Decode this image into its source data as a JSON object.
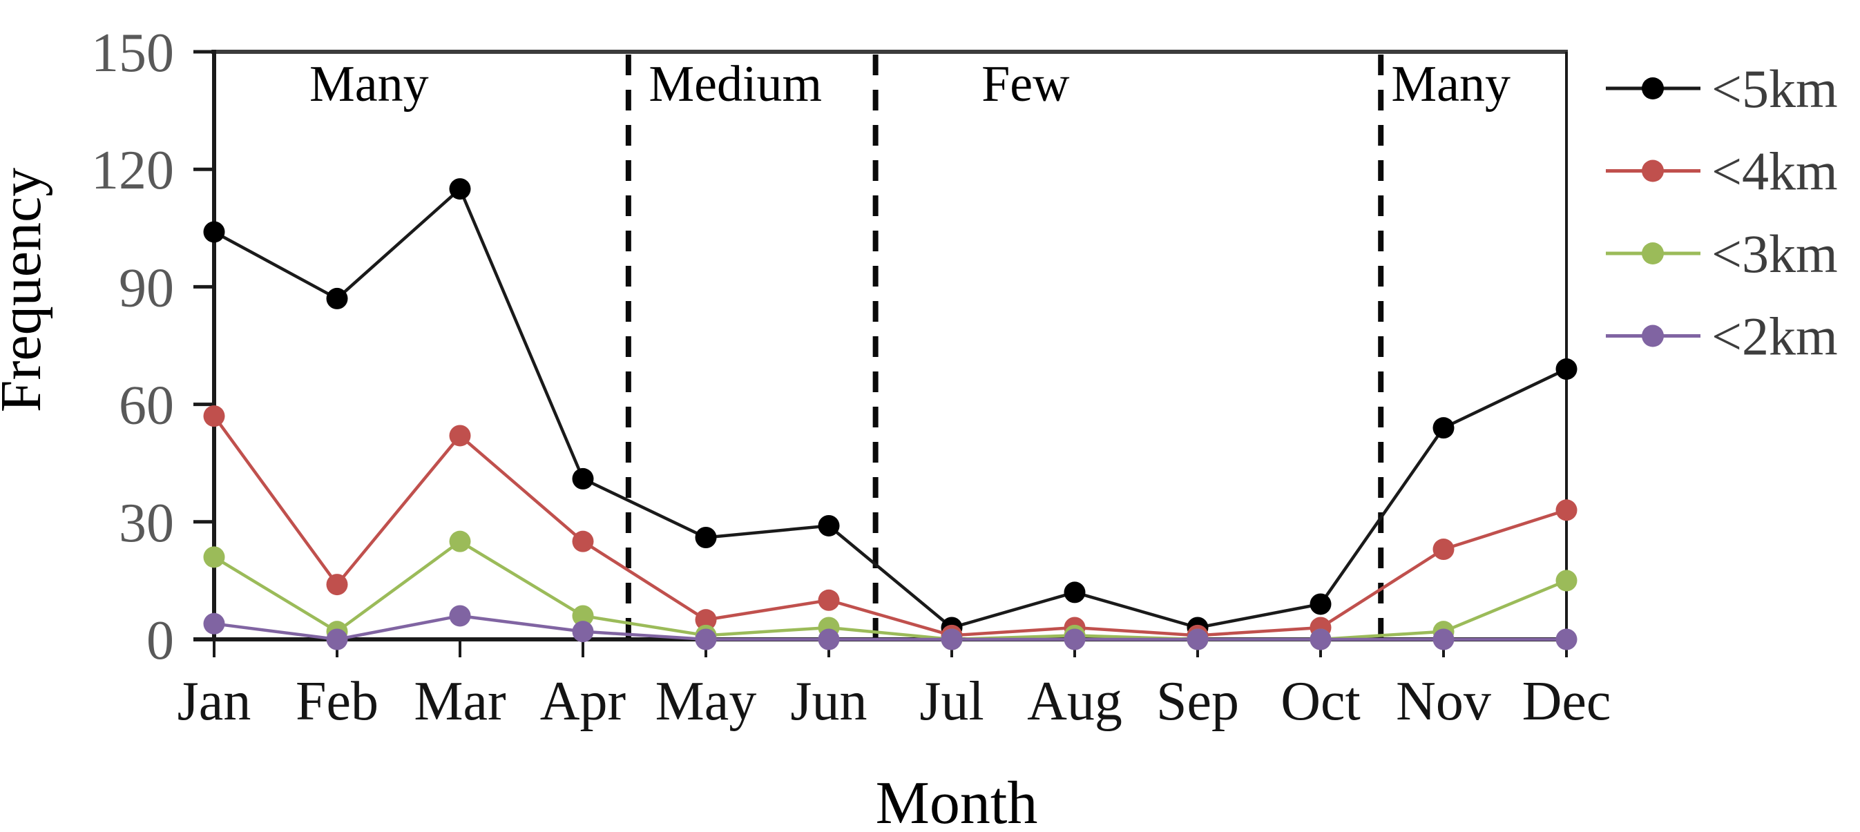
{
  "chart_data": {
    "type": "line",
    "title": "",
    "xlabel": "Month",
    "ylabel": "Frequency",
    "categories": [
      "Jan",
      "Feb",
      "Mar",
      "Apr",
      "May",
      "Jun",
      "Jul",
      "Aug",
      "Sep",
      "Oct",
      "Nov",
      "Dec"
    ],
    "ylim": [
      0,
      150
    ],
    "yticks": [
      0,
      30,
      60,
      90,
      120,
      150
    ],
    "grid": false,
    "legend_position": "right",
    "series": [
      {
        "name": "<5km",
        "color": "#1a1a1a",
        "marker_color": "#000000",
        "values": [
          104,
          87,
          115,
          41,
          26,
          29,
          3,
          12,
          3,
          9,
          54,
          69
        ]
      },
      {
        "name": "<4km",
        "color": "#c0504d",
        "marker_color": "#c0504d",
        "values": [
          57,
          14,
          52,
          25,
          5,
          10,
          1,
          3,
          1,
          3,
          23,
          33
        ]
      },
      {
        "name": "<3km",
        "color": "#9bbb59",
        "marker_color": "#9bbb59",
        "values": [
          21,
          2,
          25,
          6,
          1,
          3,
          0,
          1,
          0,
          0,
          2,
          15
        ]
      },
      {
        "name": "<2km",
        "color": "#8064a2",
        "marker_color": "#8064a2",
        "values": [
          4,
          0,
          6,
          2,
          0,
          0,
          0,
          0,
          0,
          0,
          0,
          0
        ]
      }
    ],
    "annotations": {
      "region_labels": [
        {
          "text": "Many",
          "x_month_frac": 1.26
        },
        {
          "text": "Medium",
          "x_month_frac": 4.24
        },
        {
          "text": "Few",
          "x_month_frac": 6.6
        },
        {
          "text": "Many",
          "x_month_frac": 10.06
        }
      ],
      "dividers_x_month_frac": [
        3.37,
        5.38,
        9.49
      ],
      "divider_style": "dashed"
    },
    "colors": {
      "axis": "#1a1a1a",
      "tick_label": "#595959",
      "month_label": "#141414",
      "axis_title": "#000000",
      "region_label": "#000000",
      "legend_label": "#3d3d3d",
      "divider": "#0a0a0a"
    }
  }
}
